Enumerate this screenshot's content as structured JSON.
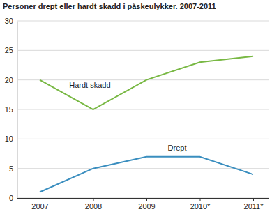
{
  "chart_data": {
    "type": "line",
    "title": "Personer drept eller hardt skadd i påskeulykker. 2007-2011",
    "categories": [
      "2007",
      "2008",
      "2009",
      "2010*",
      "2011*"
    ],
    "series": [
      {
        "name": "Hardt skadd",
        "color": "#78b843",
        "values": [
          20,
          15,
          20,
          23,
          24
        ]
      },
      {
        "name": "Drept",
        "color": "#3a8ebf",
        "values": [
          1,
          5,
          7,
          7,
          4
        ]
      }
    ],
    "ylim": [
      0,
      30
    ],
    "yticks": [
      0,
      5,
      10,
      15,
      20,
      25,
      30
    ],
    "grid": true
  }
}
